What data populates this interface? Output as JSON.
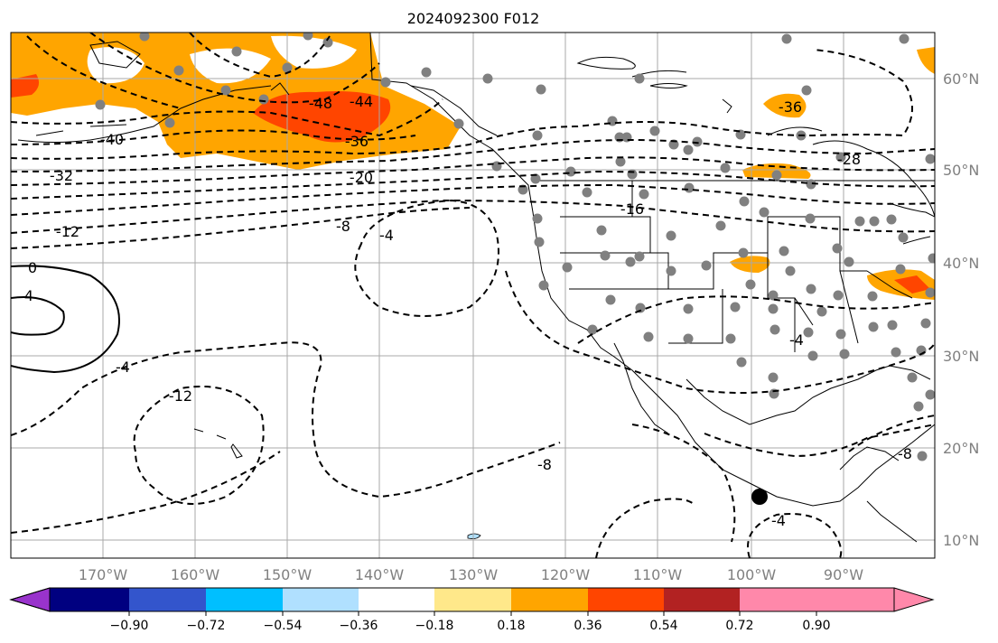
{
  "title": "2024092300 F012",
  "longitude_labels": [
    "170°W",
    "160°W",
    "150°W",
    "140°W",
    "130°W",
    "120°W",
    "110°W",
    "100°W",
    "90°W"
  ],
  "latitude_labels": [
    "60°N",
    "50°N",
    "40°N",
    "30°N",
    "20°N",
    "10°N"
  ],
  "contour_labels": [
    "-48",
    "-44",
    "-40",
    "-36",
    "-32",
    "-28",
    "-36",
    "-20",
    "-16",
    "-12",
    "-8",
    "-4",
    "0",
    "4",
    "-4",
    "-12",
    "-4",
    "-8",
    "-8",
    "-4"
  ],
  "colorbar": {
    "tick_labels": [
      "−0.90",
      "−0.72",
      "−0.54",
      "−0.36",
      "−0.18",
      "0.18",
      "0.36",
      "0.54",
      "0.72",
      "0.90"
    ],
    "colors": [
      "#9933cc",
      "#000080",
      "#3355cc",
      "#00bfff",
      "#b0e0ff",
      "#ffffff",
      "#ffe88a",
      "#ffa500",
      "#ff4500",
      "#b22222",
      "#ff88aa"
    ]
  },
  "shading_colors": {
    "orange": "#ffa500",
    "red_orange": "#ff4500",
    "light_blue": "#b0e0ff"
  },
  "station_color": "#808080"
}
